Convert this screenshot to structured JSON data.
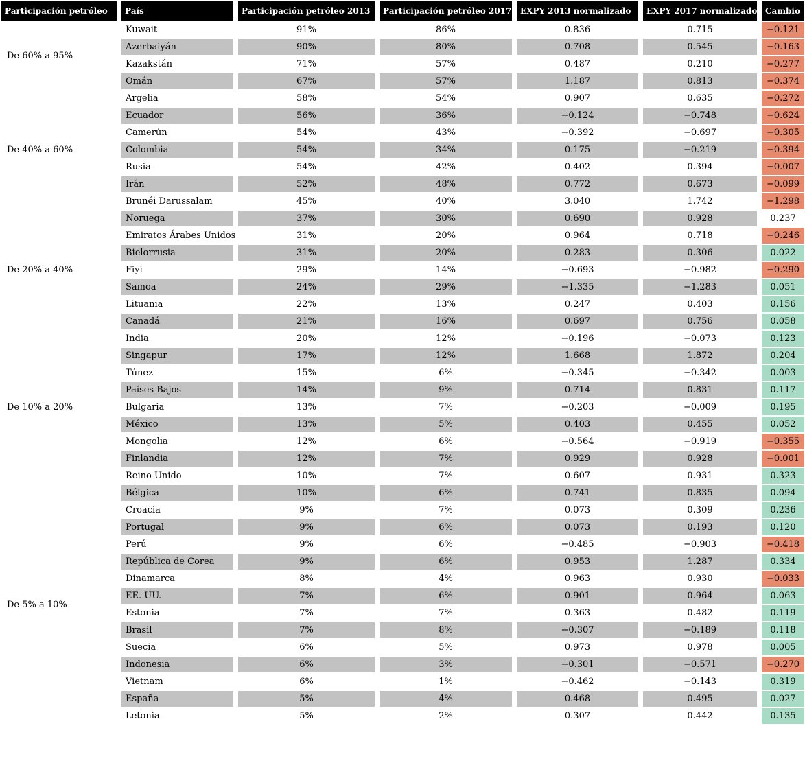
{
  "colors": {
    "negative": "#e6896c",
    "positive": "#a7dbc5",
    "neutral": "#ffffff",
    "stripe": "#c2c2c2",
    "header_bg": "#000000",
    "header_fg": "#ffffff"
  },
  "chart_data": {
    "type": "table",
    "title": "",
    "columns": [
      "Participación petróleo",
      "País",
      "Participación petróleo 2013",
      "Participación petróleo 2017",
      "EXPY 2013 normalizado",
      "EXPY 2017 normalizado",
      "Cambio"
    ],
    "groups": [
      {
        "label": "De 60% a 95%",
        "span": 4
      },
      {
        "label": "De 40% a 60%",
        "span": 7
      },
      {
        "label": "De 20% a 40%",
        "span": 7
      },
      {
        "label": "De 10% a 20%",
        "span": 9
      },
      {
        "label": "De 5% a 10%",
        "span": 14
      }
    ],
    "rows": [
      {
        "pais": "Kuwait",
        "part_2013": "91%",
        "part_2017": "86%",
        "expy_2013": 0.836,
        "expy_2017": 0.715,
        "cambio": -0.121,
        "cambio_color": "negative"
      },
      {
        "pais": "Azerbaiyán",
        "part_2013": "90%",
        "part_2017": "80%",
        "expy_2013": 0.708,
        "expy_2017": 0.545,
        "cambio": -0.163,
        "cambio_color": "negative"
      },
      {
        "pais": "Kazakstán",
        "part_2013": "71%",
        "part_2017": "57%",
        "expy_2013": 0.487,
        "expy_2017": 0.21,
        "cambio": -0.277,
        "cambio_color": "negative"
      },
      {
        "pais": "Omán",
        "part_2013": "67%",
        "part_2017": "57%",
        "expy_2013": 1.187,
        "expy_2017": 0.813,
        "cambio": -0.374,
        "cambio_color": "negative"
      },
      {
        "pais": "Argelia",
        "part_2013": "58%",
        "part_2017": "54%",
        "expy_2013": 0.907,
        "expy_2017": 0.635,
        "cambio": -0.272,
        "cambio_color": "negative"
      },
      {
        "pais": "Ecuador",
        "part_2013": "56%",
        "part_2017": "36%",
        "expy_2013": -0.124,
        "expy_2017": -0.748,
        "cambio": -0.624,
        "cambio_color": "negative"
      },
      {
        "pais": "Camerún",
        "part_2013": "54%",
        "part_2017": "43%",
        "expy_2013": -0.392,
        "expy_2017": -0.697,
        "cambio": -0.305,
        "cambio_color": "negative"
      },
      {
        "pais": "Colombia",
        "part_2013": "54%",
        "part_2017": "34%",
        "expy_2013": 0.175,
        "expy_2017": -0.219,
        "cambio": -0.394,
        "cambio_color": "negative"
      },
      {
        "pais": "Rusia",
        "part_2013": "54%",
        "part_2017": "42%",
        "expy_2013": 0.402,
        "expy_2017": 0.394,
        "cambio": -0.007,
        "cambio_color": "negative"
      },
      {
        "pais": "Irán",
        "part_2013": "52%",
        "part_2017": "48%",
        "expy_2013": 0.772,
        "expy_2017": 0.673,
        "cambio": -0.099,
        "cambio_color": "negative"
      },
      {
        "pais": "Brunéi Darussalam",
        "part_2013": "45%",
        "part_2017": "40%",
        "expy_2013": 3.04,
        "expy_2017": 1.742,
        "cambio": -1.298,
        "cambio_color": "negative"
      },
      {
        "pais": "Noruega",
        "part_2013": "37%",
        "part_2017": "30%",
        "expy_2013": 0.69,
        "expy_2017": 0.928,
        "cambio": 0.237,
        "cambio_color": "neutral"
      },
      {
        "pais": "Emiratos Árabes Unidos",
        "part_2013": "31%",
        "part_2017": "20%",
        "expy_2013": 0.964,
        "expy_2017": 0.718,
        "cambio": -0.246,
        "cambio_color": "negative"
      },
      {
        "pais": "Bielorrusia",
        "part_2013": "31%",
        "part_2017": "20%",
        "expy_2013": 0.283,
        "expy_2017": 0.306,
        "cambio": 0.022,
        "cambio_color": "positive"
      },
      {
        "pais": "Fiyi",
        "part_2013": "29%",
        "part_2017": "14%",
        "expy_2013": -0.693,
        "expy_2017": -0.982,
        "cambio": -0.29,
        "cambio_color": "negative"
      },
      {
        "pais": "Samoa",
        "part_2013": "24%",
        "part_2017": "29%",
        "expy_2013": -1.335,
        "expy_2017": -1.283,
        "cambio": 0.051,
        "cambio_color": "positive"
      },
      {
        "pais": "Lituania",
        "part_2013": "22%",
        "part_2017": "13%",
        "expy_2013": 0.247,
        "expy_2017": 0.403,
        "cambio": 0.156,
        "cambio_color": "positive"
      },
      {
        "pais": "Canadá",
        "part_2013": "21%",
        "part_2017": "16%",
        "expy_2013": 0.697,
        "expy_2017": 0.756,
        "cambio": 0.058,
        "cambio_color": "positive"
      },
      {
        "pais": "India",
        "part_2013": "20%",
        "part_2017": "12%",
        "expy_2013": -0.196,
        "expy_2017": -0.073,
        "cambio": 0.123,
        "cambio_color": "positive"
      },
      {
        "pais": "Singapur",
        "part_2013": "17%",
        "part_2017": "12%",
        "expy_2013": 1.668,
        "expy_2017": 1.872,
        "cambio": 0.204,
        "cambio_color": "positive"
      },
      {
        "pais": "Túnez",
        "part_2013": "15%",
        "part_2017": "6%",
        "expy_2013": -0.345,
        "expy_2017": -0.342,
        "cambio": 0.003,
        "cambio_color": "positive"
      },
      {
        "pais": "Países Bajos",
        "part_2013": "14%",
        "part_2017": "9%",
        "expy_2013": 0.714,
        "expy_2017": 0.831,
        "cambio": 0.117,
        "cambio_color": "positive"
      },
      {
        "pais": "Bulgaria",
        "part_2013": "13%",
        "part_2017": "7%",
        "expy_2013": -0.203,
        "expy_2017": -0.009,
        "cambio": 0.195,
        "cambio_color": "positive"
      },
      {
        "pais": "México",
        "part_2013": "13%",
        "part_2017": "5%",
        "expy_2013": 0.403,
        "expy_2017": 0.455,
        "cambio": 0.052,
        "cambio_color": "positive"
      },
      {
        "pais": "Mongolia",
        "part_2013": "12%",
        "part_2017": "6%",
        "expy_2013": -0.564,
        "expy_2017": -0.919,
        "cambio": -0.355,
        "cambio_color": "negative"
      },
      {
        "pais": "Finlandia",
        "part_2013": "12%",
        "part_2017": "7%",
        "expy_2013": 0.929,
        "expy_2017": 0.928,
        "cambio": -0.001,
        "cambio_color": "negative"
      },
      {
        "pais": "Reino Unido",
        "part_2013": "10%",
        "part_2017": "7%",
        "expy_2013": 0.607,
        "expy_2017": 0.931,
        "cambio": 0.323,
        "cambio_color": "positive"
      },
      {
        "pais": "Bélgica",
        "part_2013": "10%",
        "part_2017": "6%",
        "expy_2013": 0.741,
        "expy_2017": 0.835,
        "cambio": 0.094,
        "cambio_color": "positive"
      },
      {
        "pais": "Croacia",
        "part_2013": "9%",
        "part_2017": "7%",
        "expy_2013": 0.073,
        "expy_2017": 0.309,
        "cambio": 0.236,
        "cambio_color": "positive"
      },
      {
        "pais": "Portugal",
        "part_2013": "9%",
        "part_2017": "6%",
        "expy_2013": 0.073,
        "expy_2017": 0.193,
        "cambio": 0.12,
        "cambio_color": "positive"
      },
      {
        "pais": "Perú",
        "part_2013": "9%",
        "part_2017": "6%",
        "expy_2013": -0.485,
        "expy_2017": -0.903,
        "cambio": -0.418,
        "cambio_color": "negative"
      },
      {
        "pais": "República de Corea",
        "part_2013": "9%",
        "part_2017": "6%",
        "expy_2013": 0.953,
        "expy_2017": 1.287,
        "cambio": 0.334,
        "cambio_color": "positive"
      },
      {
        "pais": "Dinamarca",
        "part_2013": "8%",
        "part_2017": "4%",
        "expy_2013": 0.963,
        "expy_2017": 0.93,
        "cambio": -0.033,
        "cambio_color": "negative"
      },
      {
        "pais": "EE. UU.",
        "part_2013": "7%",
        "part_2017": "6%",
        "expy_2013": 0.901,
        "expy_2017": 0.964,
        "cambio": 0.063,
        "cambio_color": "positive"
      },
      {
        "pais": "Estonia",
        "part_2013": "7%",
        "part_2017": "7%",
        "expy_2013": 0.363,
        "expy_2017": 0.482,
        "cambio": 0.119,
        "cambio_color": "positive"
      },
      {
        "pais": "Brasil",
        "part_2013": "7%",
        "part_2017": "8%",
        "expy_2013": -0.307,
        "expy_2017": -0.189,
        "cambio": 0.118,
        "cambio_color": "positive"
      },
      {
        "pais": "Suecia",
        "part_2013": "6%",
        "part_2017": "5%",
        "expy_2013": 0.973,
        "expy_2017": 0.978,
        "cambio": 0.005,
        "cambio_color": "positive"
      },
      {
        "pais": "Indonesia",
        "part_2013": "6%",
        "part_2017": "3%",
        "expy_2013": -0.301,
        "expy_2017": -0.571,
        "cambio": -0.27,
        "cambio_color": "negative"
      },
      {
        "pais": "Vietnam",
        "part_2013": "6%",
        "part_2017": "1%",
        "expy_2013": -0.462,
        "expy_2017": -0.143,
        "cambio": 0.319,
        "cambio_color": "positive"
      },
      {
        "pais": "España",
        "part_2013": "5%",
        "part_2017": "4%",
        "expy_2013": 0.468,
        "expy_2017": 0.495,
        "cambio": 0.027,
        "cambio_color": "positive"
      },
      {
        "pais": "Letonia",
        "part_2013": "5%",
        "part_2017": "2%",
        "expy_2013": 0.307,
        "expy_2017": 0.442,
        "cambio": 0.135,
        "cambio_color": "positive"
      }
    ]
  }
}
